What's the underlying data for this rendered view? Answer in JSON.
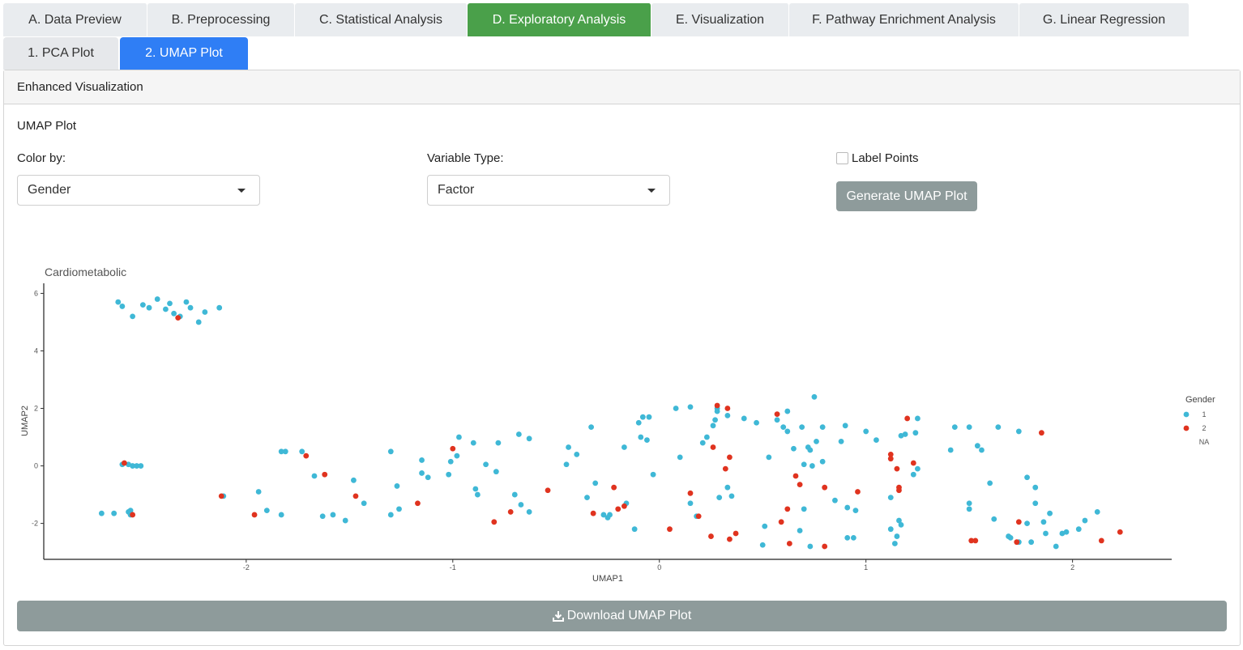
{
  "tabs": [
    {
      "label": "A. Data Preview",
      "active": false
    },
    {
      "label": "B. Preprocessing",
      "active": false
    },
    {
      "label": "C. Statistical Analysis",
      "active": false
    },
    {
      "label": "D. Exploratory Analysis",
      "active": true
    },
    {
      "label": "E. Visualization",
      "active": false
    },
    {
      "label": "F. Pathway Enrichment Analysis",
      "active": false
    },
    {
      "label": "G. Linear Regression",
      "active": false
    }
  ],
  "subtabs": [
    {
      "label": "1. PCA Plot",
      "active": false
    },
    {
      "label": "2. UMAP Plot",
      "active": true
    }
  ],
  "panel": {
    "title": "Enhanced Visualization"
  },
  "section": {
    "title": "UMAP Plot"
  },
  "controls": {
    "color_by_label": "Color by:",
    "color_by_value": "Gender",
    "variable_type_label": "Variable Type:",
    "variable_type_value": "Factor",
    "label_points": "Label Points",
    "label_points_checked": false,
    "generate_button": "Generate UMAP Plot"
  },
  "download_button": "Download UMAP Plot",
  "colors": {
    "accent_green": "#4aa04a",
    "accent_blue": "#2f7ef5",
    "button_gray": "#8e9b9b",
    "series1": "#3fb8d6",
    "series2": "#e0331f"
  },
  "chart_data": {
    "type": "scatter",
    "title": "Cardiometabolic",
    "xlabel": "UMAP1",
    "ylabel": "UMAP2",
    "xlim": [
      -2.98,
      2.48
    ],
    "ylim": [
      -3.25,
      6.35
    ],
    "xticks": [
      "-2",
      "-1",
      "0",
      "1",
      "2"
    ],
    "yticks": [
      "-2",
      "0",
      "2",
      "4",
      "6"
    ],
    "grid": false,
    "legend": {
      "title": "Gender",
      "position": "right",
      "entries": [
        "1",
        "2",
        "NA"
      ]
    },
    "series": [
      {
        "name": "1",
        "color": "#3fb8d6",
        "points": [
          [
            -2.62,
            5.7
          ],
          [
            -2.6,
            5.55
          ],
          [
            -2.55,
            5.2
          ],
          [
            -2.5,
            5.6
          ],
          [
            -2.47,
            5.5
          ],
          [
            -2.43,
            5.8
          ],
          [
            -2.39,
            5.45
          ],
          [
            -2.37,
            5.65
          ],
          [
            -2.35,
            5.3
          ],
          [
            -2.32,
            5.2
          ],
          [
            -2.29,
            5.7
          ],
          [
            -2.27,
            5.5
          ],
          [
            -2.23,
            5.0
          ],
          [
            -2.2,
            5.35
          ],
          [
            -2.13,
            5.5
          ],
          [
            -2.6,
            0.05
          ],
          [
            -2.57,
            0.05
          ],
          [
            -2.55,
            0.0
          ],
          [
            -2.53,
            0.0
          ],
          [
            -2.51,
            0.0
          ],
          [
            -2.7,
            -1.65
          ],
          [
            -2.64,
            -1.65
          ],
          [
            -2.57,
            -1.6
          ],
          [
            -2.56,
            -1.55
          ],
          [
            -2.56,
            -1.7
          ],
          [
            -2.11,
            -1.05
          ],
          [
            -1.94,
            -0.9
          ],
          [
            -1.9,
            -1.55
          ],
          [
            -1.83,
            0.5
          ],
          [
            -1.81,
            0.5
          ],
          [
            -1.83,
            -1.7
          ],
          [
            -1.73,
            0.5
          ],
          [
            -1.67,
            -0.35
          ],
          [
            -1.63,
            -1.75
          ],
          [
            -1.58,
            -1.7
          ],
          [
            -1.52,
            -1.9
          ],
          [
            -1.48,
            -0.5
          ],
          [
            -1.43,
            -1.3
          ],
          [
            -1.3,
            0.5
          ],
          [
            -1.27,
            -0.7
          ],
          [
            -1.26,
            -1.5
          ],
          [
            -1.3,
            -1.7
          ],
          [
            -1.15,
            0.2
          ],
          [
            -1.15,
            -0.25
          ],
          [
            -1.12,
            -0.4
          ],
          [
            -1.02,
            -0.3
          ],
          [
            -1.01,
            0.15
          ],
          [
            -0.98,
            0.35
          ],
          [
            -0.97,
            1.0
          ],
          [
            -0.9,
            0.8
          ],
          [
            -0.89,
            -0.8
          ],
          [
            -0.88,
            -1.0
          ],
          [
            -0.84,
            0.05
          ],
          [
            -0.79,
            -0.2
          ],
          [
            -0.78,
            0.8
          ],
          [
            -0.7,
            -1.0
          ],
          [
            -0.68,
            1.1
          ],
          [
            -0.67,
            -1.35
          ],
          [
            -0.63,
            0.95
          ],
          [
            -0.63,
            -1.6
          ],
          [
            -0.45,
            0.05
          ],
          [
            -0.44,
            0.65
          ],
          [
            -0.4,
            0.4
          ],
          [
            -0.35,
            -1.1
          ],
          [
            -0.33,
            1.35
          ],
          [
            -0.31,
            -0.6
          ],
          [
            -0.27,
            -1.7
          ],
          [
            -0.25,
            -1.8
          ],
          [
            -0.24,
            -1.7
          ],
          [
            -0.17,
            0.65
          ],
          [
            -0.16,
            -1.3
          ],
          [
            -0.12,
            -2.2
          ],
          [
            -0.1,
            1.5
          ],
          [
            -0.09,
            1.0
          ],
          [
            -0.08,
            1.7
          ],
          [
            -0.06,
            0.9
          ],
          [
            -0.05,
            1.7
          ],
          [
            -0.03,
            -0.3
          ],
          [
            0.08,
            2.0
          ],
          [
            0.1,
            0.3
          ],
          [
            0.15,
            2.05
          ],
          [
            0.15,
            -1.3
          ],
          [
            0.18,
            -1.75
          ],
          [
            0.21,
            0.8
          ],
          [
            0.23,
            1.0
          ],
          [
            0.26,
            1.4
          ],
          [
            0.27,
            1.6
          ],
          [
            0.28,
            1.9
          ],
          [
            0.28,
            2.0
          ],
          [
            0.29,
            -1.1
          ],
          [
            0.33,
            1.75
          ],
          [
            0.33,
            -0.75
          ],
          [
            0.35,
            -1.05
          ],
          [
            0.41,
            1.65
          ],
          [
            0.47,
            1.5
          ],
          [
            0.51,
            -2.1
          ],
          [
            0.5,
            -2.75
          ],
          [
            0.53,
            0.3
          ],
          [
            0.57,
            1.6
          ],
          [
            0.6,
            1.35
          ],
          [
            0.62,
            1.2
          ],
          [
            0.62,
            1.9
          ],
          [
            0.65,
            0.6
          ],
          [
            0.68,
            -2.25
          ],
          [
            0.69,
            1.35
          ],
          [
            0.7,
            -1.5
          ],
          [
            0.7,
            0.05
          ],
          [
            0.72,
            0.65
          ],
          [
            0.73,
            0.55
          ],
          [
            0.73,
            -2.8
          ],
          [
            0.74,
            0.0
          ],
          [
            0.76,
            0.85
          ],
          [
            0.75,
            2.4
          ],
          [
            0.79,
            1.35
          ],
          [
            0.79,
            0.15
          ],
          [
            0.85,
            -1.2
          ],
          [
            0.88,
            0.85
          ],
          [
            0.9,
            1.4
          ],
          [
            0.91,
            -1.45
          ],
          [
            0.91,
            -2.5
          ],
          [
            0.94,
            -2.5
          ],
          [
            0.95,
            -1.55
          ],
          [
            1.0,
            1.2
          ],
          [
            1.05,
            0.9
          ],
          [
            1.12,
            -2.2
          ],
          [
            1.14,
            -2.7
          ],
          [
            1.15,
            -2.45
          ],
          [
            1.16,
            -1.9
          ],
          [
            1.17,
            -2.05
          ],
          [
            1.17,
            1.05
          ],
          [
            1.19,
            1.1
          ],
          [
            1.23,
            -0.3
          ],
          [
            1.25,
            -0.1
          ],
          [
            1.25,
            1.65
          ],
          [
            1.24,
            1.15
          ],
          [
            1.12,
            -1.1
          ],
          [
            1.41,
            0.55
          ],
          [
            1.43,
            1.35
          ],
          [
            1.5,
            1.35
          ],
          [
            1.5,
            -1.3
          ],
          [
            1.5,
            -1.5
          ],
          [
            1.54,
            0.7
          ],
          [
            1.56,
            0.55
          ],
          [
            1.6,
            -0.6
          ],
          [
            1.62,
            -1.85
          ],
          [
            1.64,
            1.35
          ],
          [
            1.69,
            -2.45
          ],
          [
            1.7,
            -2.5
          ],
          [
            1.74,
            -2.65
          ],
          [
            1.74,
            1.2
          ],
          [
            1.78,
            -0.4
          ],
          [
            1.78,
            -2.0
          ],
          [
            1.8,
            -2.65
          ],
          [
            1.82,
            -1.3
          ],
          [
            1.82,
            -0.75
          ],
          [
            1.86,
            -1.95
          ],
          [
            1.87,
            -2.35
          ],
          [
            1.89,
            -1.65
          ],
          [
            1.92,
            -2.8
          ],
          [
            1.95,
            -2.35
          ],
          [
            1.97,
            -2.3
          ],
          [
            2.03,
            -2.2
          ],
          [
            2.06,
            -1.9
          ],
          [
            2.12,
            -1.6
          ]
        ]
      },
      {
        "name": "2",
        "color": "#e0331f",
        "points": [
          [
            -2.33,
            5.15
          ],
          [
            -2.59,
            0.1
          ],
          [
            -2.55,
            -1.7
          ],
          [
            -2.12,
            -1.05
          ],
          [
            -1.96,
            -1.7
          ],
          [
            -1.71,
            0.35
          ],
          [
            -1.62,
            -0.3
          ],
          [
            -1.47,
            -1.05
          ],
          [
            -1.17,
            -1.3
          ],
          [
            -1.0,
            0.6
          ],
          [
            -0.8,
            -1.95
          ],
          [
            -0.72,
            -1.6
          ],
          [
            -0.54,
            -0.85
          ],
          [
            -0.32,
            -1.65
          ],
          [
            -0.22,
            -0.75
          ],
          [
            -0.2,
            -1.5
          ],
          [
            -0.17,
            -1.4
          ],
          [
            0.05,
            -2.2
          ],
          [
            0.15,
            -0.95
          ],
          [
            0.19,
            -1.75
          ],
          [
            0.25,
            -2.45
          ],
          [
            0.26,
            0.65
          ],
          [
            0.28,
            2.1
          ],
          [
            0.32,
            -0.1
          ],
          [
            0.33,
            2.0
          ],
          [
            0.34,
            0.3
          ],
          [
            0.37,
            -2.35
          ],
          [
            0.34,
            -2.55
          ],
          [
            0.57,
            1.8
          ],
          [
            0.59,
            -1.95
          ],
          [
            0.62,
            -1.5
          ],
          [
            0.63,
            -2.7
          ],
          [
            0.66,
            -0.35
          ],
          [
            0.68,
            -0.65
          ],
          [
            0.8,
            -0.75
          ],
          [
            0.8,
            -2.8
          ],
          [
            0.96,
            -0.9
          ],
          [
            1.12,
            0.4
          ],
          [
            1.12,
            0.25
          ],
          [
            1.15,
            -0.1
          ],
          [
            1.16,
            -0.75
          ],
          [
            1.16,
            -0.85
          ],
          [
            1.2,
            1.65
          ],
          [
            1.23,
            0.1
          ],
          [
            1.51,
            -2.6
          ],
          [
            1.53,
            -2.6
          ],
          [
            1.73,
            -2.65
          ],
          [
            1.74,
            -1.95
          ],
          [
            1.85,
            1.15
          ],
          [
            2.14,
            -2.6
          ],
          [
            2.23,
            -2.3
          ]
        ]
      },
      {
        "name": "NA",
        "color": "#9a9a9a",
        "points": []
      }
    ]
  }
}
